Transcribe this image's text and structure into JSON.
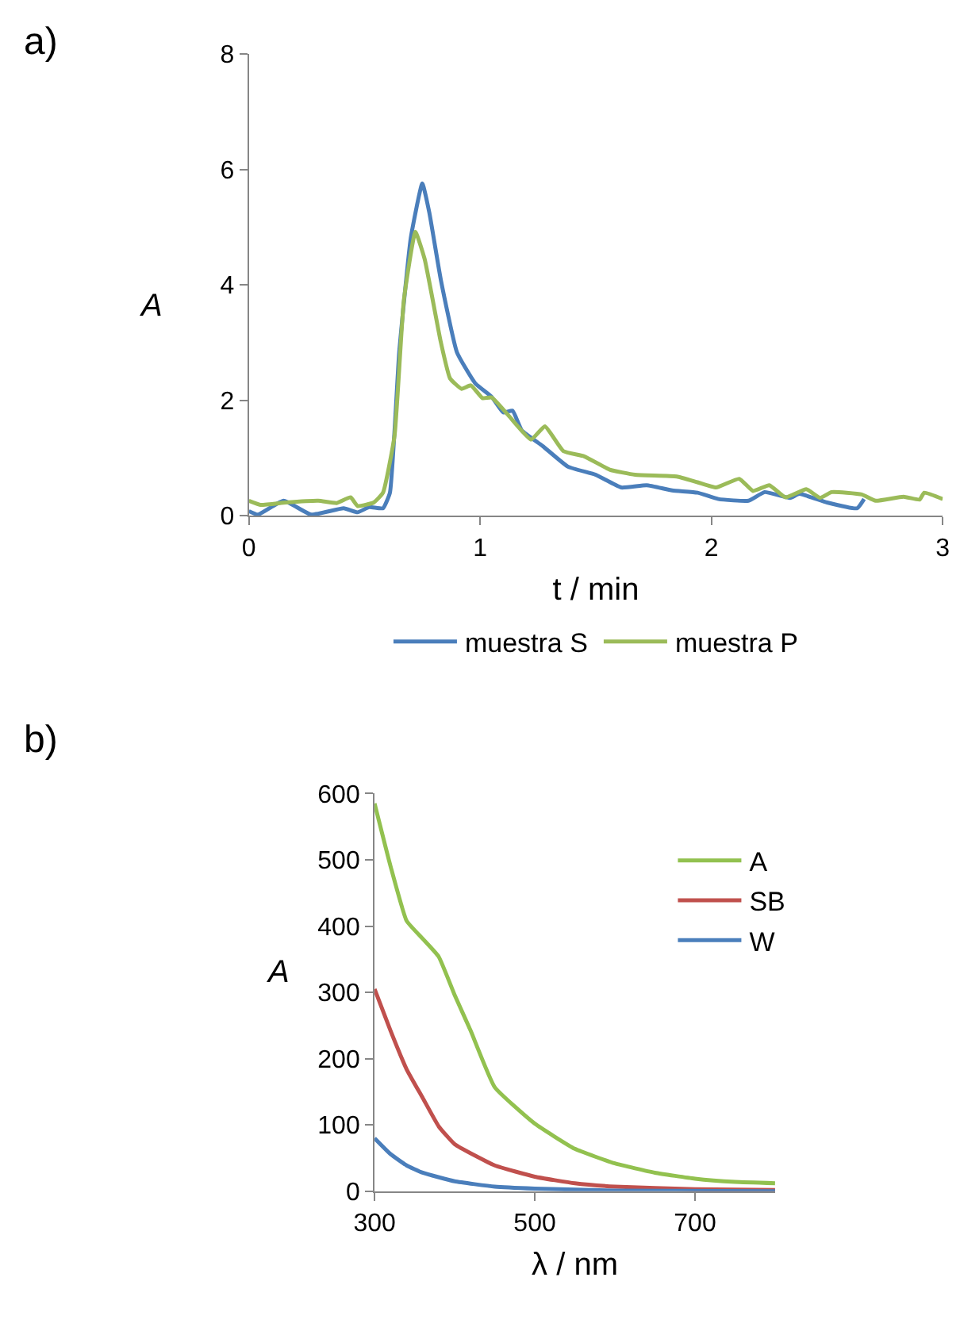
{
  "chart_data": [
    {
      "type": "line",
      "annotations": [
        "a)"
      ],
      "xlabel": "t / min",
      "ylabel": "A",
      "xlim": [
        0,
        3
      ],
      "xticks": [
        0,
        1,
        2,
        3
      ],
      "ylim": [
        0,
        8
      ],
      "yticks": [
        0,
        2,
        4,
        6,
        8
      ],
      "grid": false,
      "legend": "bottom",
      "marker": "none",
      "line_style": "solid",
      "series": [
        {
          "name": "muestra S",
          "color": "#4a7ebb",
          "x": [
            0,
            0.04,
            0.15,
            0.27,
            0.41,
            0.47,
            0.52,
            0.58,
            0.61,
            0.65,
            0.7,
            0.75,
            0.78,
            0.83,
            0.9,
            0.98,
            1.05,
            1.1,
            1.14,
            1.18,
            1.27,
            1.38,
            1.5,
            1.61,
            1.72,
            1.83,
            1.94,
            2.03,
            2.16,
            2.23,
            2.34,
            2.38,
            2.5,
            2.63,
            2.66
          ],
          "values": [
            0.08,
            0.02,
            0.26,
            0.02,
            0.13,
            0.06,
            0.15,
            0.13,
            0.4,
            2.83,
            4.81,
            5.76,
            5.26,
            4.09,
            2.83,
            2.29,
            2.06,
            1.79,
            1.82,
            1.48,
            1.21,
            0.85,
            0.71,
            0.49,
            0.53,
            0.44,
            0.4,
            0.29,
            0.26,
            0.41,
            0.31,
            0.38,
            0.23,
            0.13,
            0.29
          ]
        },
        {
          "name": "muestra P",
          "color": "#9bbb59",
          "x": [
            0,
            0.05,
            0.16,
            0.3,
            0.38,
            0.44,
            0.47,
            0.54,
            0.58,
            0.63,
            0.67,
            0.72,
            0.76,
            0.83,
            0.87,
            0.92,
            0.96,
            1.01,
            1.05,
            1.12,
            1.22,
            1.28,
            1.36,
            1.45,
            1.56,
            1.67,
            1.85,
            1.94,
            2.02,
            2.12,
            2.18,
            2.25,
            2.32,
            2.41,
            2.47,
            2.52,
            2.65,
            2.71,
            2.83,
            2.9,
            2.92,
            3.0
          ],
          "values": [
            0.26,
            0.19,
            0.23,
            0.26,
            0.22,
            0.32,
            0.17,
            0.23,
            0.4,
            1.39,
            3.73,
            4.92,
            4.45,
            3.01,
            2.38,
            2.2,
            2.26,
            2.04,
            2.05,
            1.75,
            1.32,
            1.55,
            1.12,
            1.03,
            0.8,
            0.71,
            0.68,
            0.58,
            0.49,
            0.64,
            0.43,
            0.53,
            0.32,
            0.46,
            0.31,
            0.41,
            0.37,
            0.26,
            0.33,
            0.28,
            0.4,
            0.29
          ]
        }
      ]
    },
    {
      "type": "line",
      "annotations": [
        "b)"
      ],
      "xlabel": "λ / nm",
      "ylabel": "A",
      "xlim": [
        300,
        800
      ],
      "xticks": [
        300,
        500,
        700
      ],
      "ylim": [
        0,
        600
      ],
      "yticks": [
        0,
        100,
        200,
        300,
        400,
        500,
        600
      ],
      "grid": false,
      "legend": "top right",
      "marker": "none",
      "line_style": "solid",
      "series": [
        {
          "name": "A",
          "color": "#92c14f",
          "x": [
            300,
            320,
            340,
            360,
            380,
            400,
            420,
            450,
            500,
            550,
            600,
            650,
            700,
            750,
            800
          ],
          "values": [
            585,
            490,
            408,
            381,
            354,
            296,
            242,
            157,
            102,
            64,
            42,
            28,
            19,
            14,
            12
          ]
        },
        {
          "name": "SB",
          "color": "#c0504d",
          "x": [
            300,
            320,
            340,
            360,
            380,
            400,
            450,
            500,
            550,
            600,
            700,
            800
          ],
          "values": [
            305,
            242,
            184,
            141,
            98,
            71,
            39,
            22,
            12,
            7,
            3,
            2
          ]
        },
        {
          "name": "W",
          "color": "#4a7ebb",
          "x": [
            300,
            320,
            340,
            360,
            400,
            450,
            500,
            600,
            800
          ],
          "values": [
            80,
            56,
            39,
            28,
            15,
            7,
            4,
            1,
            0
          ]
        }
      ]
    }
  ]
}
